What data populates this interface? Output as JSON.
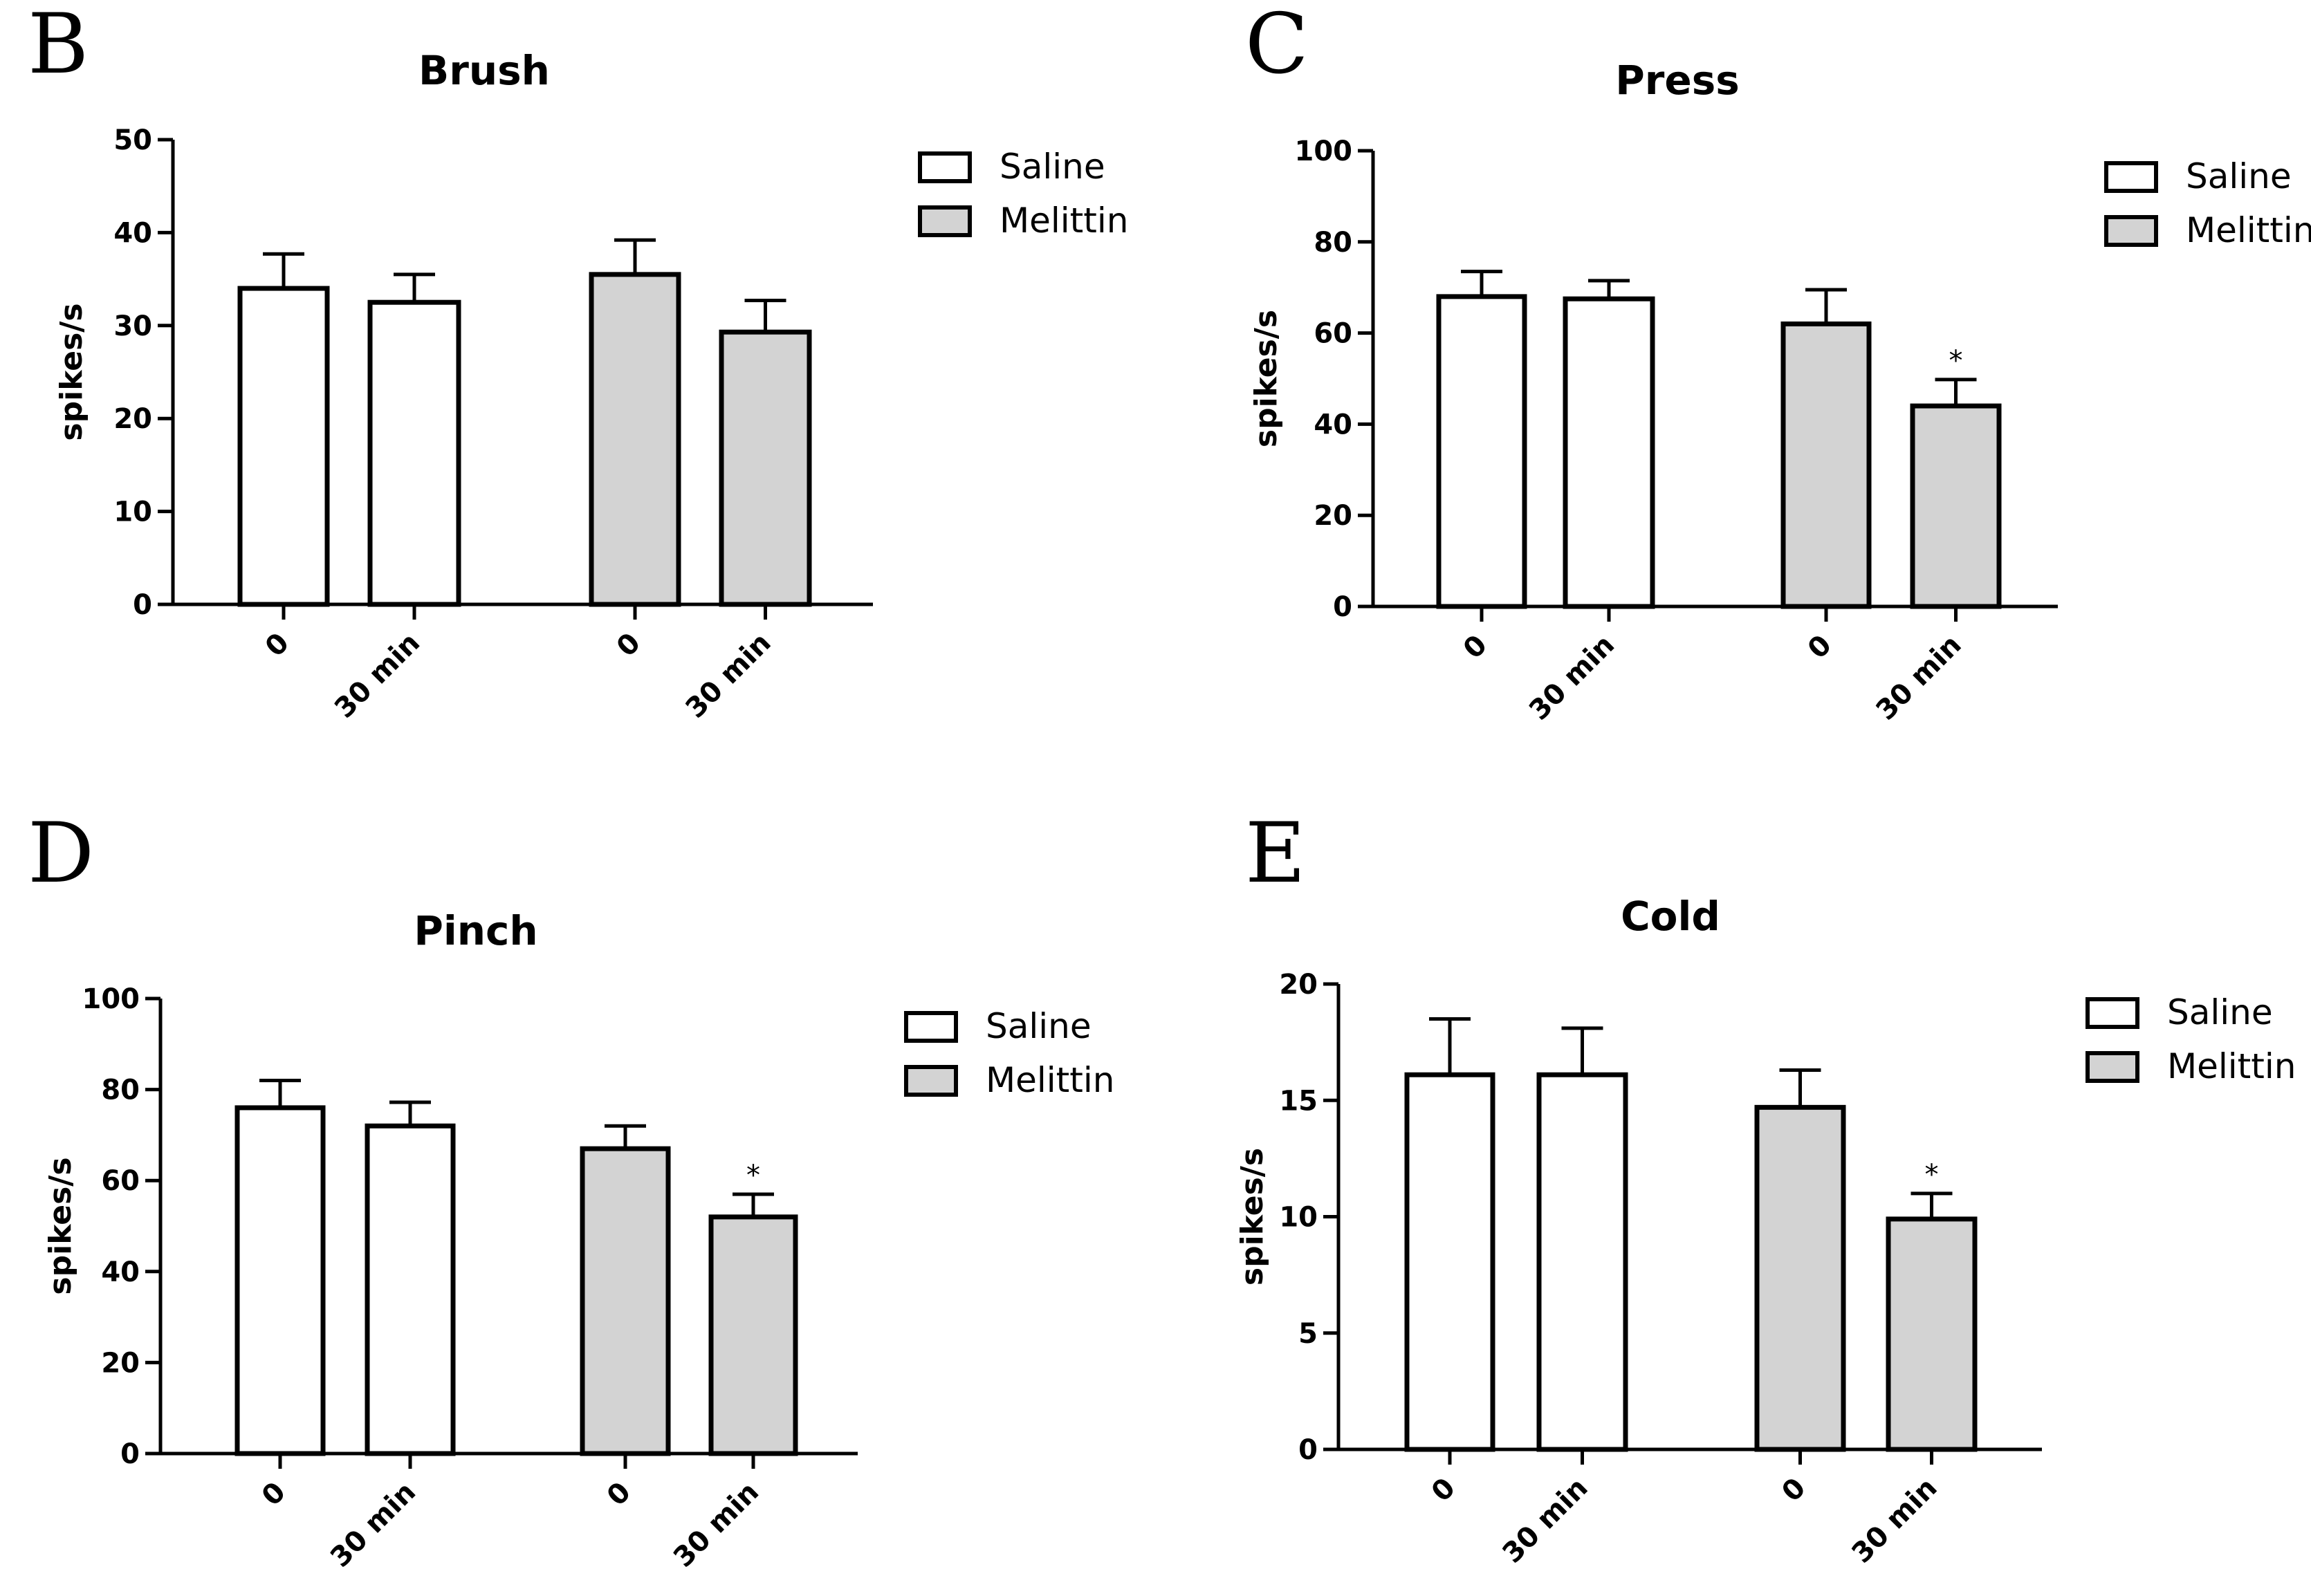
{
  "legend": {
    "saline": "Saline",
    "melittin": "Melittin"
  },
  "colors": {
    "saline_fill": "#ffffff",
    "melittin_fill": "#d3d3d3",
    "stroke": "#000000"
  },
  "chart_data": [
    {
      "panel": "B",
      "type": "bar",
      "title": "Brush",
      "ylabel": "spikes/s",
      "xlabel": "",
      "ylim": [
        0,
        50
      ],
      "yticks": [
        0,
        10,
        20,
        30,
        40,
        50
      ],
      "categories": [
        "0",
        "30 min",
        "0",
        "30 min"
      ],
      "groups": [
        "Saline",
        "Saline",
        "Melittin",
        "Melittin"
      ],
      "values": [
        34,
        32.5,
        35.5,
        29.3
      ],
      "errors": [
        3.7,
        3,
        3.7,
        3.4
      ],
      "significance": [
        "",
        "",
        "",
        ""
      ]
    },
    {
      "panel": "C",
      "type": "bar",
      "title": "Press",
      "ylabel": "spikes/s",
      "xlabel": "",
      "ylim": [
        0,
        100
      ],
      "yticks": [
        0,
        20,
        40,
        60,
        80,
        100
      ],
      "categories": [
        "0",
        "30 min",
        "0",
        "30 min"
      ],
      "groups": [
        "Saline",
        "Saline",
        "Melittin",
        "Melittin"
      ],
      "values": [
        68,
        67.5,
        62,
        44
      ],
      "errors": [
        5.5,
        4,
        7.5,
        5.8
      ],
      "significance": [
        "",
        "",
        "",
        "*"
      ]
    },
    {
      "panel": "D",
      "type": "bar",
      "title": "Pinch",
      "ylabel": "spikes/s",
      "xlabel": "",
      "ylim": [
        0,
        100
      ],
      "yticks": [
        0,
        20,
        40,
        60,
        80,
        100
      ],
      "categories": [
        "0",
        "30 min",
        "0",
        "30 min"
      ],
      "groups": [
        "Saline",
        "Saline",
        "Melittin",
        "Melittin"
      ],
      "values": [
        76,
        72,
        67,
        52
      ],
      "errors": [
        6,
        5.2,
        5,
        5
      ],
      "significance": [
        "",
        "",
        "",
        "*"
      ]
    },
    {
      "panel": "E",
      "type": "bar",
      "title": "Cold",
      "ylabel": "spikes/s",
      "xlabel": "",
      "ylim": [
        0,
        20
      ],
      "yticks": [
        0,
        5,
        10,
        15,
        20
      ],
      "categories": [
        "0",
        "30 min",
        "0",
        "30 min"
      ],
      "groups": [
        "Saline",
        "Saline",
        "Melittin",
        "Melittin"
      ],
      "values": [
        16.1,
        16.1,
        14.7,
        9.9
      ],
      "errors": [
        2.4,
        2,
        1.6,
        1.1
      ],
      "significance": [
        "",
        "",
        "",
        "*"
      ]
    }
  ]
}
